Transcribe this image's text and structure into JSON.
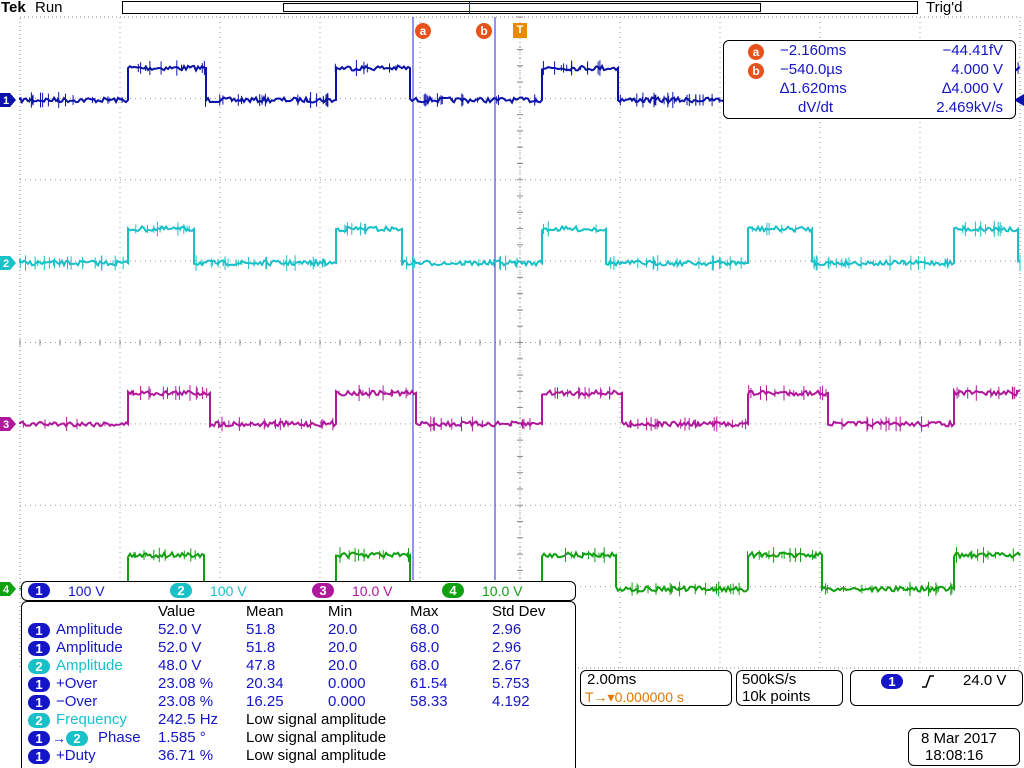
{
  "header": {
    "brand": "Tek",
    "run_state": "Run",
    "trigger_state": "Trig'd"
  },
  "colors": {
    "ch1": "#0a12a8",
    "ch2": "#18c0c8",
    "ch3": "#b0189c",
    "ch4": "#10a010",
    "cursor": "#2a2ae0",
    "marker": "#e8501c",
    "trigger": "#e88a00"
  },
  "cursor_markers": {
    "a": "a",
    "b": "b",
    "t": "T"
  },
  "readout": {
    "rows": [
      {
        "icon": "a",
        "time": "−2.160ms",
        "value": "−44.41fV"
      },
      {
        "icon": "b",
        "time": "−540.0µs",
        "value": "4.000 V"
      },
      {
        "icon": "",
        "time": "∆1.620ms",
        "value": "∆4.000 V"
      },
      {
        "icon": "",
        "time": "dV/dt",
        "value": "2.469kV/s"
      }
    ]
  },
  "channels": [
    {
      "id": "1",
      "scale": "100 V",
      "color": "#1515c8"
    },
    {
      "id": "2",
      "scale": "100 V",
      "color": "#18c0c8"
    },
    {
      "id": "3",
      "scale": "10.0 V",
      "color": "#b0189c"
    },
    {
      "id": "4",
      "scale": "10.0 V",
      "color": "#10a010"
    }
  ],
  "measurements": {
    "headers": [
      "Value",
      "Mean",
      "Min",
      "Max",
      "Std Dev"
    ],
    "rows": [
      {
        "src": "1",
        "src2": "",
        "name": "Amplitude",
        "value": "52.0 V",
        "mean": "51.8",
        "min": "20.0",
        "max": "68.0",
        "std": "2.96",
        "note": ""
      },
      {
        "src": "1",
        "src2": "",
        "name": "Amplitude",
        "value": "52.0 V",
        "mean": "51.8",
        "min": "20.0",
        "max": "68.0",
        "std": "2.96",
        "note": ""
      },
      {
        "src": "2",
        "src2": "",
        "name": "Amplitude",
        "value": "48.0 V",
        "mean": "47.8",
        "min": "20.0",
        "max": "68.0",
        "std": "2.67",
        "note": ""
      },
      {
        "src": "1",
        "src2": "",
        "name": "+Over",
        "value": "23.08 %",
        "mean": "20.34",
        "min": "0.000",
        "max": "61.54",
        "std": "5.753",
        "note": ""
      },
      {
        "src": "1",
        "src2": "",
        "name": "−Over",
        "value": "23.08 %",
        "mean": "16.25",
        "min": "0.000",
        "max": "58.33",
        "std": "4.192",
        "note": ""
      },
      {
        "src": "2",
        "src2": "",
        "name": "Frequency",
        "value": "242.5 Hz",
        "mean": "",
        "min": "",
        "max": "",
        "std": "",
        "note": "Low signal amplitude"
      },
      {
        "src": "1",
        "src2": "2",
        "name": "Phase",
        "value": "1.585 °",
        "mean": "",
        "min": "",
        "max": "",
        "std": "",
        "note": "Low signal amplitude"
      },
      {
        "src": "1",
        "src2": "",
        "name": "+Duty",
        "value": "36.71 %",
        "mean": "",
        "min": "",
        "max": "",
        "std": "",
        "note": "Low signal amplitude"
      }
    ]
  },
  "timebase": {
    "scale": "2.00ms",
    "delay_prefix": "T→▾",
    "delay": "0.000000 s"
  },
  "acquisition": {
    "rate": "500kS/s",
    "points": "10k points"
  },
  "trigger": {
    "source": "1",
    "slope_icon": "rising-edge",
    "level": "24.0 V"
  },
  "datetime": {
    "date": "8 Mar  2017",
    "time": "18:08:16"
  },
  "chart_data": {
    "type": "line",
    "series": [
      {
        "id": "1",
        "edges": [
          0.108,
          0.185,
          0.315,
          0.39,
          0.522,
          0.597,
          0.727,
          0.801,
          0.93,
          1.005
        ]
      },
      {
        "id": "2",
        "edges": [
          0.108,
          0.173,
          0.315,
          0.381,
          0.522,
          0.586,
          0.727,
          0.792,
          0.933,
          0.998
        ]
      },
      {
        "id": "3",
        "edges": [
          0.108,
          0.189,
          0.315,
          0.396,
          0.522,
          0.602,
          0.727,
          0.807,
          0.933,
          1.013
        ]
      },
      {
        "id": "4",
        "edges": [
          0.108,
          0.183,
          0.315,
          0.39,
          0.522,
          0.595,
          0.727,
          0.801,
          0.933,
          1.008
        ]
      }
    ]
  }
}
